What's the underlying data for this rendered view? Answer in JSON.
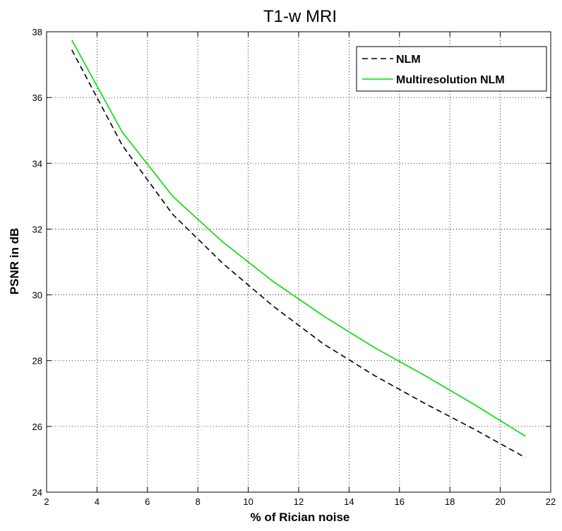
{
  "chart_data": {
    "type": "line",
    "title": "T1-w MRI",
    "xlabel": "% of Rician noise",
    "ylabel": "PSNR in dB",
    "xlim": [
      2,
      22
    ],
    "ylim": [
      24,
      38
    ],
    "xticks": [
      2,
      4,
      6,
      8,
      10,
      12,
      14,
      16,
      18,
      20,
      22
    ],
    "yticks": [
      24,
      26,
      28,
      30,
      32,
      34,
      36,
      38
    ],
    "grid": true,
    "legend_position": "top-right",
    "x": [
      3,
      5,
      7,
      9,
      11,
      13,
      15,
      17,
      19,
      21
    ],
    "series": [
      {
        "name": "NLM",
        "color": "#000000",
        "style": "dashed",
        "values": [
          37.45,
          34.55,
          32.45,
          30.95,
          29.65,
          28.5,
          27.55,
          26.7,
          25.9,
          25.05
        ]
      },
      {
        "name": "Multiresolution NLM",
        "color": "#00dd00",
        "style": "solid",
        "values": [
          37.75,
          34.95,
          33.0,
          31.6,
          30.4,
          29.35,
          28.4,
          27.55,
          26.65,
          25.7
        ]
      }
    ]
  }
}
